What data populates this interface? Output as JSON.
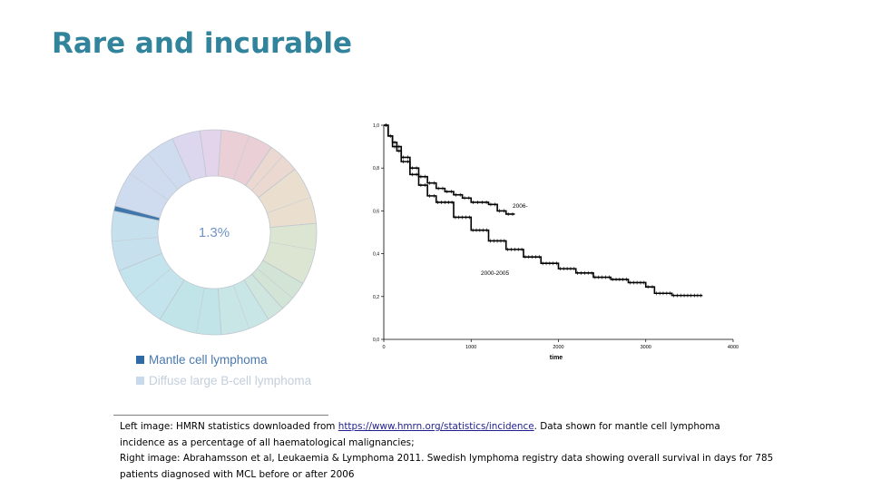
{
  "slide": {
    "title": "Rare and incurable"
  },
  "donut": {
    "center_label": "1.3%",
    "legend": [
      {
        "label": "Mantle cell lymphoma",
        "color": "#2e6aa6",
        "text_color": "#4a78b0"
      },
      {
        "label": "Diffuse large B-cell lymphoma",
        "color": "#c9d9ec",
        "text_color": "#c3cfdc"
      }
    ]
  },
  "chart_data": {
    "type": "line",
    "title": "",
    "xlabel": "time",
    "ylabel": "",
    "xlim": [
      0,
      4000
    ],
    "ylim": [
      0,
      1.0
    ],
    "x_ticks": [
      0,
      1000,
      2000,
      3000,
      4000
    ],
    "y_ticks": [
      0.0,
      0.2,
      0.4,
      0.6,
      0.8,
      1.0
    ],
    "x_tick_labels": [
      "0",
      "1000",
      "2000",
      "3000",
      "4000"
    ],
    "y_tick_labels": [
      "0,0",
      "0,2",
      "0,4",
      "0,6",
      "0,8",
      "1,0"
    ],
    "series": [
      {
        "name": "2006-",
        "x": [
          0,
          50,
          100,
          150,
          200,
          300,
          400,
          500,
          600,
          700,
          800,
          900,
          1000,
          1100,
          1200,
          1300,
          1400,
          1500
        ],
        "y": [
          1.0,
          0.95,
          0.92,
          0.88,
          0.85,
          0.8,
          0.76,
          0.73,
          0.705,
          0.69,
          0.675,
          0.66,
          0.64,
          0.64,
          0.63,
          0.6,
          0.585,
          0.585
        ]
      },
      {
        "name": "2000-2005",
        "x": [
          0,
          50,
          100,
          200,
          300,
          400,
          500,
          600,
          800,
          1000,
          1200,
          1400,
          1600,
          1800,
          2000,
          2200,
          2400,
          2600,
          2800,
          3000,
          3100,
          3300,
          3500,
          3650
        ],
        "y": [
          1.0,
          0.95,
          0.9,
          0.83,
          0.77,
          0.72,
          0.67,
          0.64,
          0.57,
          0.51,
          0.46,
          0.42,
          0.385,
          0.355,
          0.33,
          0.31,
          0.29,
          0.28,
          0.265,
          0.245,
          0.215,
          0.205,
          0.205,
          0.205
        ]
      }
    ]
  },
  "caption": {
    "line1_prefix": "Left image: HMRN statistics downloaded from ",
    "link": "https://www.hmrn.org/statistics/incidence",
    "line1_suffix": ". Data shown for mantle cell lymphoma",
    "line2": "incidence as a percentage of all haematological malignancies;",
    "line3": "Right image: Abrahamsson et al, Leukaemia & Lymphoma 2011. Swedish lymphoma registry data showing overall survival in days for 785",
    "line4": "patients diagnosed with MCL before or after 2006"
  },
  "colors": {
    "title": "#31849b"
  }
}
